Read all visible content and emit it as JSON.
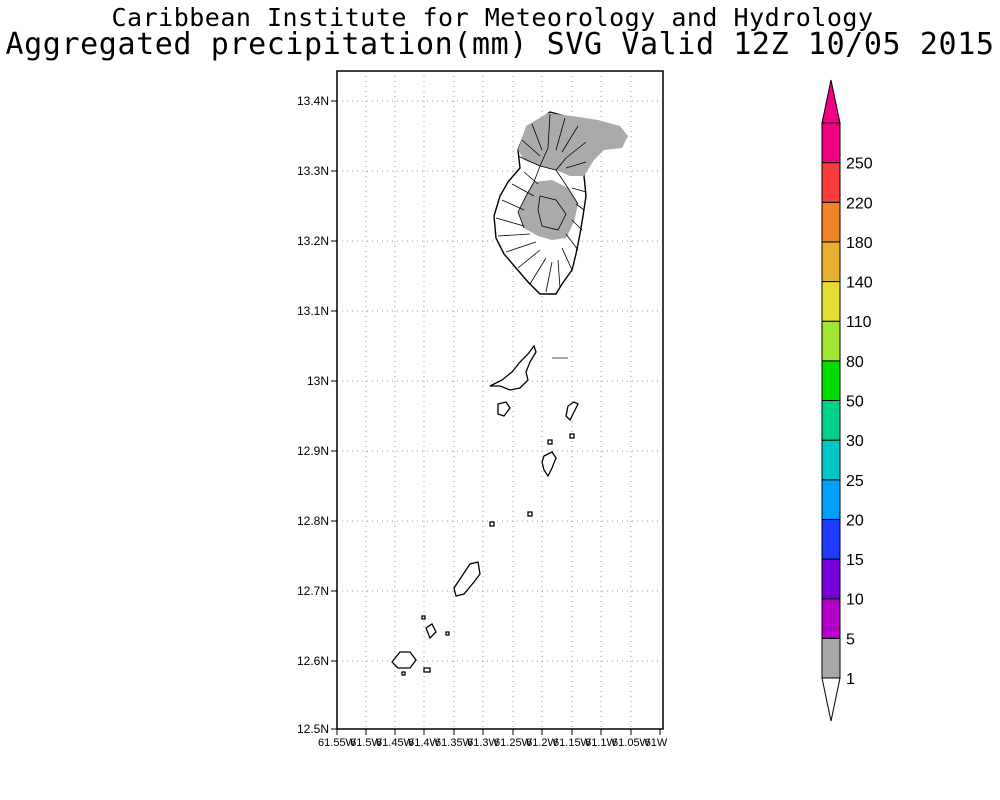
{
  "header": {
    "institute": "Caribbean Institute for Meteorology and Hydrology",
    "product": "Aggregated precipitation(mm) SVG Valid 12Z 10/05 2015"
  },
  "map": {
    "region": "Saint Vincent and the Grenadines",
    "lat_range": [
      12.5,
      13.44
    ],
    "lon_range": [
      -61.55,
      -61.0
    ],
    "lat_ticks": [
      "13.4N",
      "13.3N",
      "13.2N",
      "13.1N",
      "13N",
      "12.9N",
      "12.8N",
      "12.7N",
      "12.6N",
      "12.5N"
    ],
    "lon_ticks": [
      "61.55W",
      "61.5W",
      "61.45W",
      "61.4W",
      "61.35W",
      "61.3W",
      "61.25W",
      "61.2W",
      "61.15W",
      "61.1W",
      "61.05W",
      "61W"
    ],
    "gridlines": "dotted",
    "precip_color": "#aaaaaa",
    "precip_class": "1-5 mm"
  },
  "colorbar": {
    "labels": [
      "1",
      "5",
      "10",
      "15",
      "20",
      "25",
      "30",
      "50",
      "80",
      "110",
      "140",
      "180",
      "220",
      "250"
    ],
    "colors": [
      "#a8a8a8",
      "#b400c8",
      "#7800dc",
      "#1e3cff",
      "#00a0ff",
      "#00c8c8",
      "#00d28c",
      "#00dc00",
      "#a0e632",
      "#e6dc32",
      "#e6af2d",
      "#f08228",
      "#fa3c3c",
      "#f00082"
    ],
    "under_color": "#ffffff",
    "over_color": "#f00082"
  }
}
